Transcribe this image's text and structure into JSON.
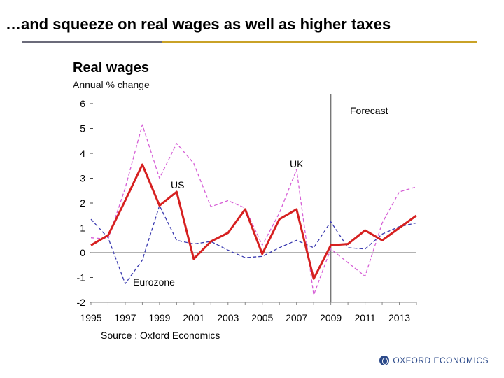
{
  "slide": {
    "title": "…and squeeze on real wages as well as higher taxes"
  },
  "logo": {
    "text": "OXFORD ECONOMICS"
  },
  "colors": {
    "accent_rule": "#c9a227",
    "us": "#d62020",
    "uk": "#d65fd6",
    "eurozone": "#3b3bb0",
    "logo": "#2c4a8a"
  },
  "chart_data": {
    "type": "line",
    "title": "Real wages",
    "subtitle": "Annual % change",
    "source": "Source : Oxford Economics",
    "ylim": [
      -2,
      6
    ],
    "yticks": [
      -2,
      -1,
      0,
      1,
      2,
      3,
      4,
      5,
      6
    ],
    "x": [
      1995,
      1996,
      1997,
      1998,
      1999,
      2000,
      2001,
      2002,
      2003,
      2004,
      2005,
      2006,
      2007,
      2008,
      2009,
      2010,
      2011,
      2012,
      2013,
      2014
    ],
    "xticks": [
      1995,
      1997,
      1999,
      2001,
      2003,
      2005,
      2007,
      2009,
      2011,
      2013
    ],
    "forecast_start": 2009,
    "forecast_label": "Forecast",
    "series": [
      {
        "name": "US",
        "label": "US",
        "style": "solid",
        "color": "#d62020",
        "values": [
          0.3,
          0.7,
          2.1,
          3.55,
          1.9,
          2.45,
          -0.25,
          0.45,
          0.8,
          1.75,
          -0.05,
          1.35,
          1.75,
          -1.05,
          0.3,
          0.35,
          0.9,
          0.5,
          1.0,
          1.5
        ]
      },
      {
        "name": "UK",
        "label": "UK",
        "style": "dashed",
        "color": "#d65fd6",
        "values": [
          0.6,
          0.55,
          2.6,
          5.15,
          3.0,
          4.4,
          3.6,
          1.85,
          2.1,
          1.8,
          0.3,
          1.6,
          3.35,
          -1.7,
          0.15,
          -0.4,
          -0.95,
          1.2,
          2.45,
          2.65
        ]
      },
      {
        "name": "Eurozone",
        "label": "Eurozone",
        "style": "dashed",
        "color": "#3b3bb0",
        "values": [
          1.35,
          0.6,
          -1.25,
          -0.3,
          1.9,
          0.5,
          0.35,
          0.45,
          0.1,
          -0.2,
          -0.15,
          0.2,
          0.5,
          0.2,
          1.25,
          0.2,
          0.15,
          0.75,
          1.05,
          1.2
        ]
      }
    ]
  }
}
